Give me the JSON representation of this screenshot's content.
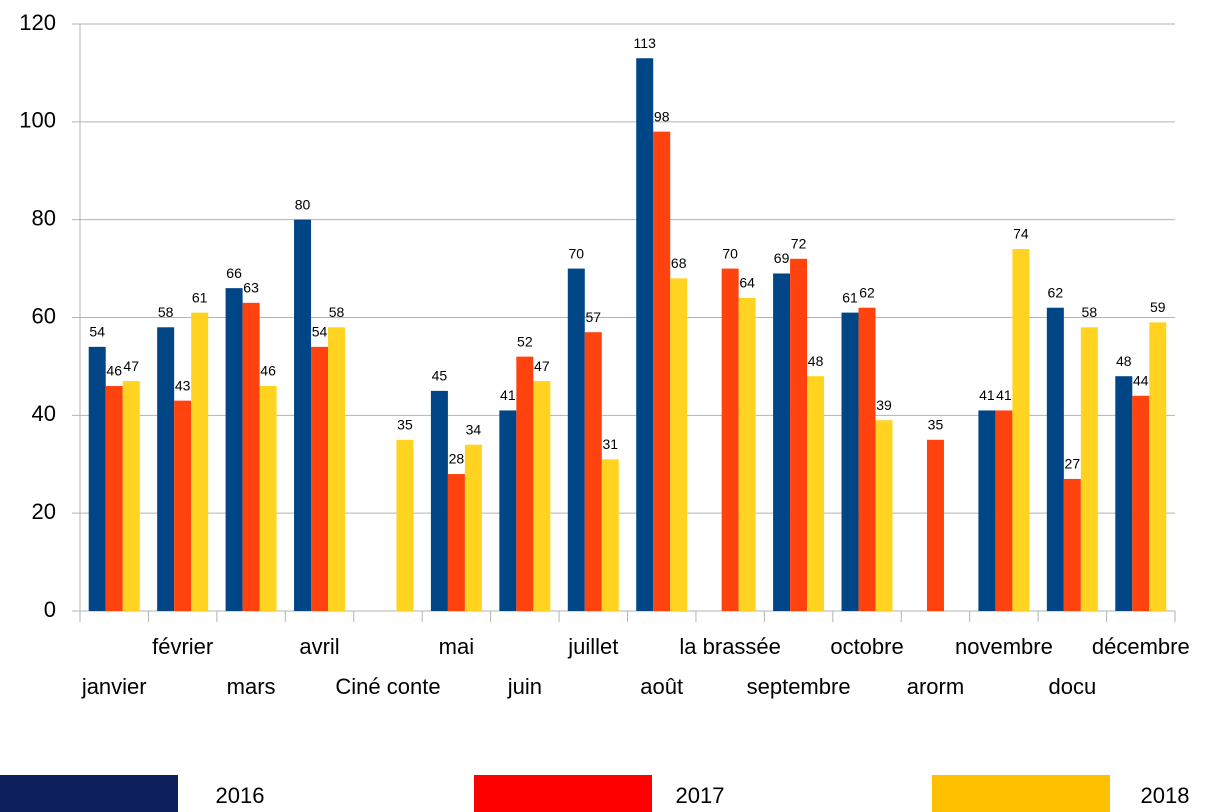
{
  "chart_data": {
    "type": "bar",
    "categories": [
      "janvier",
      "février",
      "mars",
      "avril",
      "Ciné conte",
      "mai",
      "juin",
      "juillet",
      "août",
      "la brassée",
      "septembre",
      "octobre",
      "arorm",
      "novembre",
      "docu",
      "décembre"
    ],
    "series": [
      {
        "name": "2016",
        "color": "#004586",
        "legend_color": "#0d1f5c",
        "values": [
          54,
          58,
          66,
          80,
          null,
          45,
          41,
          70,
          113,
          null,
          69,
          61,
          null,
          41,
          62,
          48
        ]
      },
      {
        "name": "2017",
        "color": "#ff420e",
        "legend_color": "#ff0000",
        "values": [
          46,
          43,
          63,
          54,
          null,
          28,
          52,
          57,
          98,
          70,
          72,
          62,
          35,
          41,
          27,
          44
        ]
      },
      {
        "name": "2018",
        "color": "#ffd320",
        "legend_color": "#ffc000",
        "values": [
          47,
          61,
          46,
          58,
          35,
          34,
          47,
          31,
          68,
          64,
          48,
          39,
          null,
          74,
          58,
          59
        ]
      }
    ],
    "ylim": [
      0,
      120
    ],
    "yticks": [
      0,
      20,
      40,
      60,
      80,
      100,
      120
    ],
    "grid": true,
    "legend": "bottom"
  }
}
